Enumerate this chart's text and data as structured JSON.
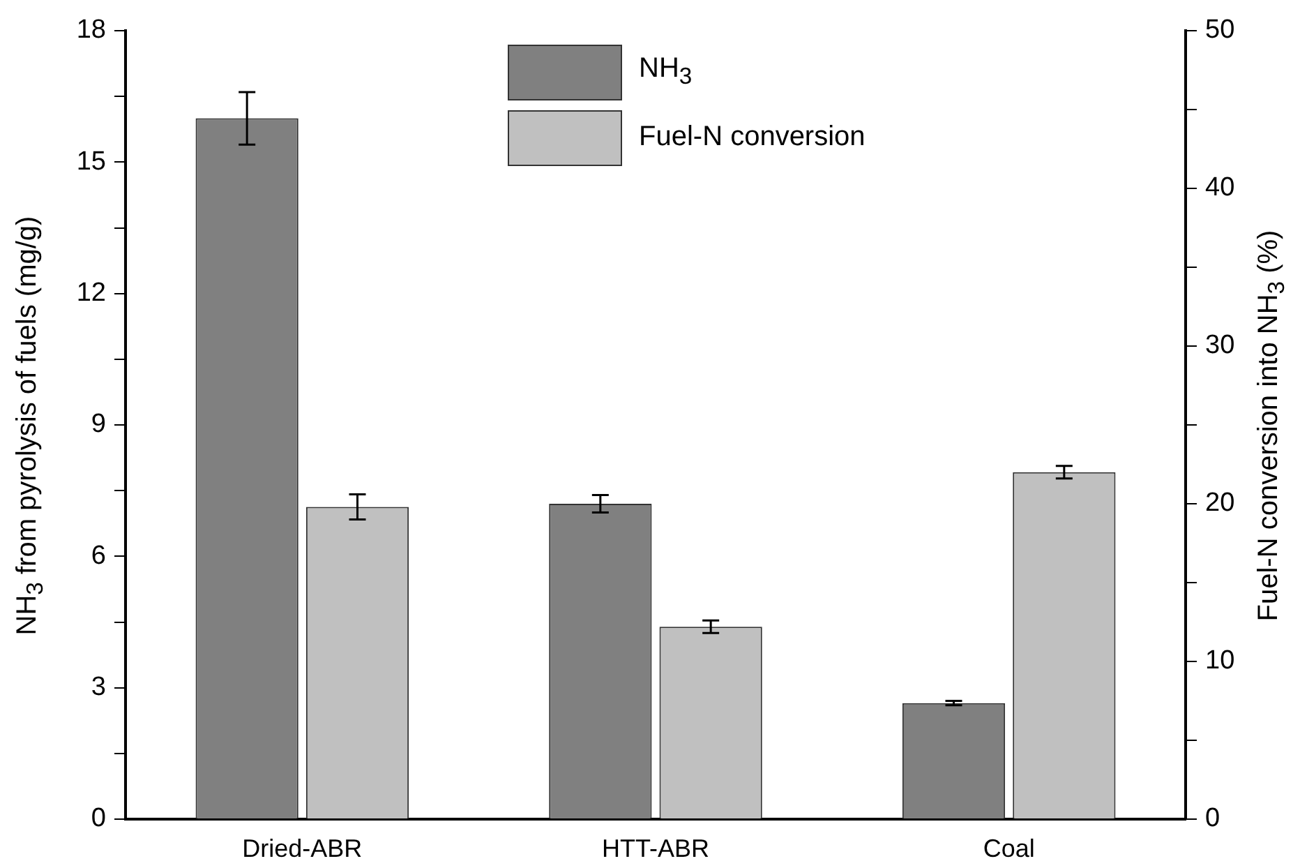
{
  "chart_data": {
    "type": "bar",
    "categories": [
      "Dried-ABR",
      "HTT-ABR",
      "Coal"
    ],
    "series": [
      {
        "name": "NH$_{3}$",
        "color": "#808080",
        "values": [
          16.0,
          7.2,
          2.65
        ],
        "errors": [
          0.6,
          0.2,
          0.05
        ]
      },
      {
        "name": "Fuel-N conversion",
        "color": "#c0c0c0",
        "axis": "y2",
        "values": [
          19.8,
          12.2,
          22.0
        ],
        "errors": [
          0.8,
          0.4,
          0.4
        ]
      }
    ],
    "ylabel": "NH$_{3}$ from pyrolysis of fuels (mg/g)",
    "y2label": "Fuel-N conversion into NH$_{3}$ (%)",
    "ylim": [
      0,
      18
    ],
    "yticks": [
      0,
      {
        "value": 1.5,
        "label": null
      },
      3,
      {
        "value": 4.5,
        "label": null
      },
      6,
      {
        "value": 7.5,
        "label": null
      },
      9,
      {
        "value": 10.5,
        "label": null
      },
      12,
      {
        "value": 13.5,
        "label": null
      },
      15,
      {
        "value": 16.5,
        "label": null
      },
      18
    ],
    "y2lim": [
      0,
      50
    ],
    "y2ticks": [
      0,
      {
        "value": 5,
        "label": null
      },
      10,
      {
        "value": 15,
        "label": null
      },
      20,
      {
        "value": 25,
        "label": null
      },
      30,
      {
        "value": 35,
        "label": null
      },
      40,
      {
        "value": 45,
        "label": null
      },
      50
    ],
    "grid": false,
    "legend": "top"
  }
}
